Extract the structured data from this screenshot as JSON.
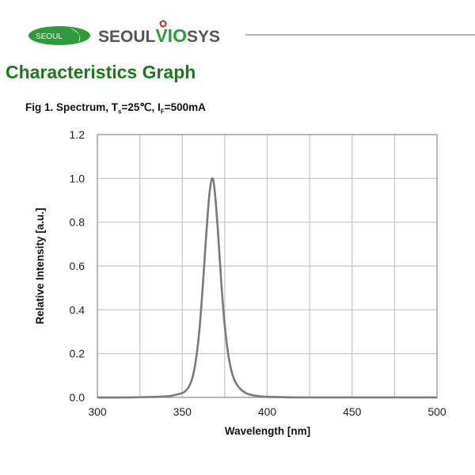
{
  "header": {
    "logo_oval_text": "SEOUL",
    "brand_part1": "SEOUL",
    "brand_part2": "VIO",
    "brand_part3": "SYS",
    "colors": {
      "logo_green": "#2e9a3a",
      "brand_gray": "#555555",
      "title_green": "#1a7a1a",
      "dot_red": "#c0282d"
    }
  },
  "section_title": "Characteristics Graph",
  "figure": {
    "caption_prefix": "Fig 1. Spectrum, T",
    "caption_sub1": "s",
    "caption_mid": "=25℃, I",
    "caption_sub2": "F",
    "caption_suffix": "=500mA"
  },
  "chart_data": {
    "type": "line",
    "title": "Fig 1. Spectrum, Ts=25℃, IF=500mA",
    "xlabel": "Wavelength [nm]",
    "ylabel": "Relative Intensity [a.u.]",
    "xlim": [
      300,
      500
    ],
    "ylim": [
      0,
      1.2
    ],
    "xticks": [
      300,
      350,
      400,
      450,
      500
    ],
    "yticks": [
      "0.0",
      "0.2",
      "0.4",
      "0.6",
      "0.8",
      "1.0",
      "1.2"
    ],
    "x_minor_grid": [
      325,
      375,
      425,
      475
    ],
    "grid": true,
    "series": [
      {
        "name": "Spectrum",
        "color": "#7a7a7a",
        "x": [
          300,
          320,
          340,
          345,
          350,
          352,
          354,
          356,
          358,
          360,
          362,
          364,
          366,
          367.6,
          369,
          371,
          373,
          375,
          377,
          379,
          381,
          384,
          388,
          393,
          400,
          420,
          450,
          500
        ],
        "values": [
          0.0,
          0.0,
          0.005,
          0.01,
          0.02,
          0.03,
          0.05,
          0.09,
          0.17,
          0.3,
          0.5,
          0.73,
          0.93,
          1.0,
          0.95,
          0.76,
          0.52,
          0.33,
          0.2,
          0.12,
          0.075,
          0.04,
          0.018,
          0.008,
          0.003,
          0.0,
          0.0,
          0.0
        ]
      }
    ]
  }
}
